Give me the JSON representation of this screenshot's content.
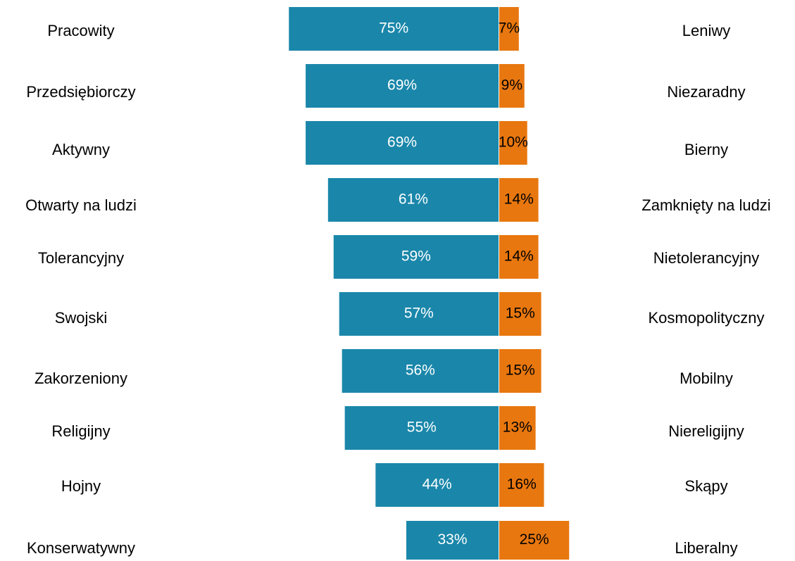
{
  "chart_data": {
    "type": "diverging_bar",
    "categories": [
      "Pracowity",
      "Przedsiębiorczy",
      "Aktywny",
      "Otwarty na ludzi",
      "Tolerancyjny",
      "Swojski",
      "Zakorzeniony",
      "Religijny",
      "Hojny",
      "Konserwatywny"
    ],
    "right_categories": [
      "Leniwy",
      "Niezaradny",
      "Bierny",
      "Zamknięty na ludzi",
      "Nietolerancyjny",
      "Kosmopolityczny",
      "Mobilny",
      "Niereligijny",
      "Skąpy",
      "Liberalny"
    ],
    "series": [
      {
        "color": "#1a87aa",
        "values": [
          75,
          69,
          69,
          61,
          59,
          57,
          56,
          55,
          44,
          33
        ],
        "value_labels": [
          "75%",
          "69%",
          "69%",
          "61%",
          "59%",
          "57%",
          "56%",
          "55%",
          "44%",
          "33%"
        ]
      },
      {
        "color": "#e8770f",
        "values": [
          7,
          9,
          10,
          14,
          14,
          15,
          15,
          13,
          16,
          25
        ],
        "value_labels": [
          "7%",
          "9%",
          "10%",
          "14%",
          "14%",
          "15%",
          "15%",
          "13%",
          "16%",
          "25%"
        ]
      }
    ]
  }
}
